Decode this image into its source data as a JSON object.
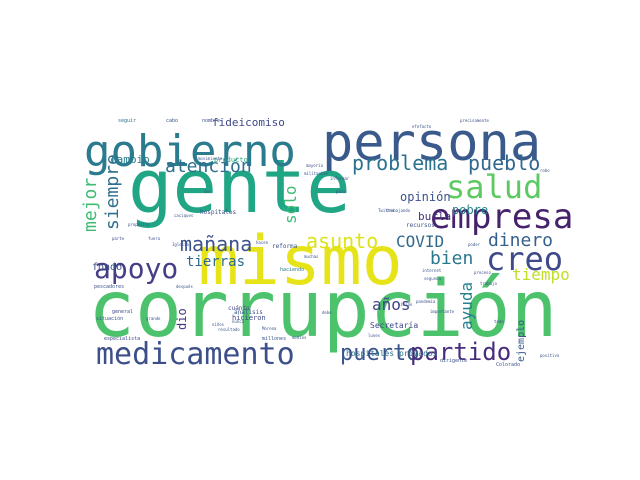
{
  "words": [
    {
      "text": "gente",
      "color": "#21a685"
    },
    {
      "text": "corrupción",
      "color": "#4cc26c"
    },
    {
      "text": "mismo",
      "color": "#e6e419"
    },
    {
      "text": "persona",
      "color": "#3b5a8c"
    },
    {
      "text": "gobierno",
      "color": "#2a7b8e"
    },
    {
      "text": "empresa",
      "color": "#46226c"
    },
    {
      "text": "medicamento",
      "color": "#3c4f8a"
    },
    {
      "text": "salud",
      "color": "#5ec962"
    },
    {
      "text": "apoyo",
      "color": "#433e85"
    },
    {
      "text": "creo",
      "color": "#3e4a89"
    },
    {
      "text": "problema",
      "color": "#2c728e"
    },
    {
      "text": "pueblo",
      "color": "#31688e"
    },
    {
      "text": "puerto",
      "color": "#3a548c"
    },
    {
      "text": "partido",
      "color": "#472d7b"
    },
    {
      "text": "atención",
      "color": "#2e6f8e"
    },
    {
      "text": "mañana",
      "color": "#3b528b"
    },
    {
      "text": "asunto",
      "color": "#dde318"
    },
    {
      "text": "mejor",
      "color": "#3fbc73"
    },
    {
      "text": "siempre",
      "color": "#2d708e"
    },
    {
      "text": "COVID",
      "color": "#31688e"
    },
    {
      "text": "dinero",
      "color": "#35608d"
    },
    {
      "text": "bien",
      "color": "#2a788e"
    },
    {
      "text": "tiempo",
      "color": "#c2df23"
    },
    {
      "text": "ayuda",
      "color": "#26828e"
    },
    {
      "text": "años",
      "color": "#414487"
    },
    {
      "text": "tierras",
      "color": "#2f6b8e"
    },
    {
      "text": "sólo",
      "color": "#3dbc74"
    },
    {
      "text": "cambio",
      "color": "#287c8e"
    },
    {
      "text": "fideicomiso",
      "color": "#3e4989"
    },
    {
      "text": "opinión",
      "color": "#3b528b"
    },
    {
      "text": "burla",
      "color": "#46337e"
    },
    {
      "text": "pobre",
      "color": "#23898e"
    },
    {
      "text": "fondo",
      "color": "#3b518b"
    },
    {
      "text": "dio",
      "color": "#443983"
    },
    {
      "text": "ejemplo",
      "color": "#38588c"
    },
    {
      "text": "Secretaría",
      "color": "#3f4788"
    },
    {
      "text": "hospitales privados",
      "color": "#2d708e"
    },
    {
      "text": "producto",
      "color": "#29af7f"
    },
    {
      "text": "hospitales",
      "color": "#3b528b"
    },
    {
      "text": "recursos",
      "color": "#3b528b"
    },
    {
      "text": "hicieron",
      "color": "#3f4788"
    },
    {
      "text": "análisis",
      "color": "#39558c"
    },
    {
      "text": "cuánto",
      "color": "#3f4788"
    },
    {
      "text": "reforma",
      "color": "#3a538b"
    },
    {
      "text": "especialista",
      "color": "#3e4989"
    },
    {
      "text": "general",
      "color": "#3e4989"
    },
    {
      "text": "situación",
      "color": "#3b528b"
    },
    {
      "text": "pescadores",
      "color": "#3b528b"
    },
    {
      "text": "seguir",
      "color": "#2c728e"
    },
    {
      "text": "cabo",
      "color": "#3b528b"
    },
    {
      "text": "nombre",
      "color": "#3b528b"
    },
    {
      "text": "movimiento",
      "color": "#3b528b"
    },
    {
      "text": "informar",
      "color": "#3b528b"
    },
    {
      "text": "mayoría",
      "color": "#3b528b"
    },
    {
      "text": "militantes",
      "color": "#3b528b"
    },
    {
      "text": "precisamente",
      "color": "#3b528b"
    },
    {
      "text": "efefacto",
      "color": "#3b528b"
    },
    {
      "text": "robo",
      "color": "#3b528b"
    },
    {
      "text": "dar",
      "color": "#3b528b"
    },
    {
      "text": "caciques",
      "color": "#3b528b"
    },
    {
      "text": "país",
      "color": "#3b528b"
    },
    {
      "text": "trabajando",
      "color": "#3b528b"
    },
    {
      "text": "Twitter",
      "color": "#3b528b"
    },
    {
      "text": "fuera",
      "color": "#3b528b"
    },
    {
      "text": "Iglesia",
      "color": "#3b528b"
    },
    {
      "text": "parte",
      "color": "#3b528b"
    },
    {
      "text": "hacen",
      "color": "#3b528b"
    },
    {
      "text": "muchas",
      "color": "#3b528b"
    },
    {
      "text": "poder",
      "color": "#3b528b"
    },
    {
      "text": "internet",
      "color": "#3b528b"
    },
    {
      "text": "segunda",
      "color": "#3b528b"
    },
    {
      "text": "proceso",
      "color": "#3b528b"
    },
    {
      "text": "haciendo",
      "color": "#2a788e"
    },
    {
      "text": "después",
      "color": "#3b528b"
    },
    {
      "text": "lunes",
      "color": "#3b528b"
    },
    {
      "text": "Morena",
      "color": "#3b528b"
    },
    {
      "text": "resultado",
      "color": "#3b528b"
    },
    {
      "text": "millones",
      "color": "#3b528b"
    },
    {
      "text": "niños",
      "color": "#3b528b"
    },
    {
      "text": "nunca",
      "color": "#3b528b"
    },
    {
      "text": "medios",
      "color": "#3b528b"
    },
    {
      "text": "toda",
      "color": "#3b528b"
    },
    {
      "text": "propósito",
      "color": "#3b528b"
    },
    {
      "text": "Colorado",
      "color": "#3b528b"
    },
    {
      "text": "positivo",
      "color": "#3b528b"
    },
    {
      "text": "importante",
      "color": "#3b528b"
    },
    {
      "text": "trabajo",
      "color": "#3b528b"
    },
    {
      "text": "pandemia",
      "color": "#3b528b"
    },
    {
      "text": "grande",
      "color": "#3b528b"
    },
    {
      "text": "debe",
      "color": "#3b528b"
    },
    {
      "text": "visión",
      "color": "#3b528b"
    },
    {
      "text": "dirigente",
      "color": "#3b528b"
    }
  ]
}
